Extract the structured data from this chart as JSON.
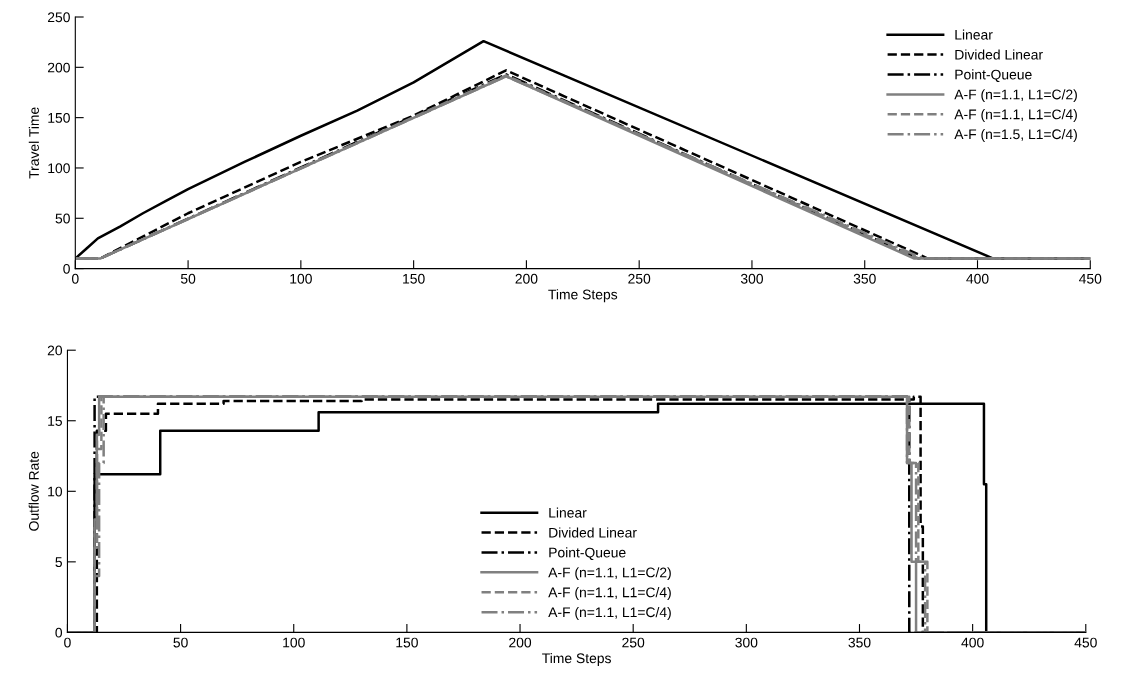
{
  "chart_data": [
    {
      "type": "line",
      "xlabel": "Time Steps",
      "ylabel": "Travel Time",
      "xlim": [
        0,
        450
      ],
      "ylim": [
        0,
        250
      ],
      "xticks": [
        0,
        50,
        100,
        150,
        200,
        250,
        300,
        350,
        400,
        450
      ],
      "yticks": [
        0,
        50,
        100,
        150,
        200,
        250
      ],
      "grid": false,
      "legend": "top right",
      "marker": "none",
      "series": [
        {
          "name": "Linear",
          "color": "#000000",
          "line_style": "solid",
          "x": [
            0,
            5,
            10,
            20,
            30,
            40,
            50,
            75,
            100,
            125,
            150,
            181,
            407,
            450
          ],
          "values": [
            10,
            20,
            30,
            42,
            55,
            67,
            79,
            106,
            132,
            157,
            185,
            226,
            10,
            10
          ]
        },
        {
          "name": "Divided Linear",
          "color": "#000000",
          "line_style": "dashed",
          "x": [
            0,
            11,
            50,
            100,
            150,
            191,
            378,
            450
          ],
          "values": [
            10,
            10,
            55,
            106,
            152,
            197,
            10,
            10
          ]
        },
        {
          "name": "Point-Queue",
          "color": "#000000",
          "line_style": "dashdot",
          "x": [
            0,
            11,
            191,
            374,
            450
          ],
          "values": [
            10,
            10,
            193,
            10,
            10
          ]
        },
        {
          "name": "A-F (n=1.1, L1=C/2)",
          "color": "#808080",
          "line_style": "solid",
          "x": [
            0,
            11,
            191,
            372,
            450
          ],
          "values": [
            10,
            10,
            191,
            10,
            10
          ]
        },
        {
          "name": "A-F (n=1.1, L1=C/4)",
          "color": "#808080",
          "line_style": "dashed",
          "x": [
            0,
            11,
            191,
            374,
            450
          ],
          "values": [
            10,
            10,
            192,
            10,
            10
          ]
        },
        {
          "name": "A-F (n=1.5, L1=C/4)",
          "color": "#808080",
          "line_style": "dashdot",
          "x": [
            0,
            11,
            191,
            376,
            450
          ],
          "values": [
            10,
            10,
            191,
            10,
            10
          ]
        }
      ]
    },
    {
      "type": "step",
      "xlabel": "Time Steps",
      "ylabel": "Outflow Rate",
      "xlim": [
        0,
        450
      ],
      "ylim": [
        0,
        20
      ],
      "xticks": [
        0,
        50,
        100,
        150,
        200,
        250,
        300,
        350,
        400,
        450
      ],
      "yticks": [
        0,
        5,
        10,
        15,
        20
      ],
      "grid": false,
      "legend": "bottom",
      "marker": "none",
      "series": [
        {
          "name": "Linear",
          "color": "#000000",
          "line_style": "solid",
          "x": [
            0,
            11,
            12,
            41,
            111,
            261,
            405,
            406,
            407,
            450
          ],
          "values": [
            0,
            0,
            11.2,
            14.3,
            15.6,
            16.2,
            10.5,
            0,
            0,
            0
          ]
        },
        {
          "name": "Divided Linear",
          "color": "#000000",
          "line_style": "dashed",
          "x": [
            0,
            11,
            13,
            17,
            40,
            69,
            130,
            374,
            377,
            378,
            450
          ],
          "values": [
            0,
            0,
            14.3,
            15.5,
            16.2,
            16.4,
            16.5,
            16.7,
            7.5,
            0,
            0
          ]
        },
        {
          "name": "Point-Queue",
          "color": "#000000",
          "line_style": "dashdot",
          "x": [
            0,
            10,
            12,
            372,
            450
          ],
          "values": [
            0,
            0,
            16.7,
            0,
            0
          ]
        },
        {
          "name": "A-F (n=1.1, L1=C/2)",
          "color": "#808080",
          "line_style": "solid",
          "x": [
            0,
            11,
            12,
            13,
            14,
            368,
            371,
            373,
            375,
            450
          ],
          "values": [
            0,
            0,
            8,
            14,
            16.7,
            16.7,
            12,
            5,
            0,
            0
          ]
        },
        {
          "name": "A-F (n=1.1, L1=C/4)",
          "color": "#808080",
          "line_style": "dashed",
          "x": [
            0,
            11,
            12,
            13,
            15,
            368,
            372,
            376,
            380,
            450
          ],
          "values": [
            0,
            0,
            6,
            13,
            16.7,
            16.7,
            12,
            5,
            0,
            0
          ]
        },
        {
          "name": "A-F (n=1.1, L1=C/4)",
          "color": "#808080",
          "line_style": "dashdot",
          "x": [
            0,
            11,
            12,
            14,
            16,
            367,
            371,
            375,
            379,
            450
          ],
          "values": [
            0,
            0,
            4,
            12,
            16.7,
            16.7,
            12,
            5,
            0,
            0
          ]
        }
      ]
    }
  ]
}
